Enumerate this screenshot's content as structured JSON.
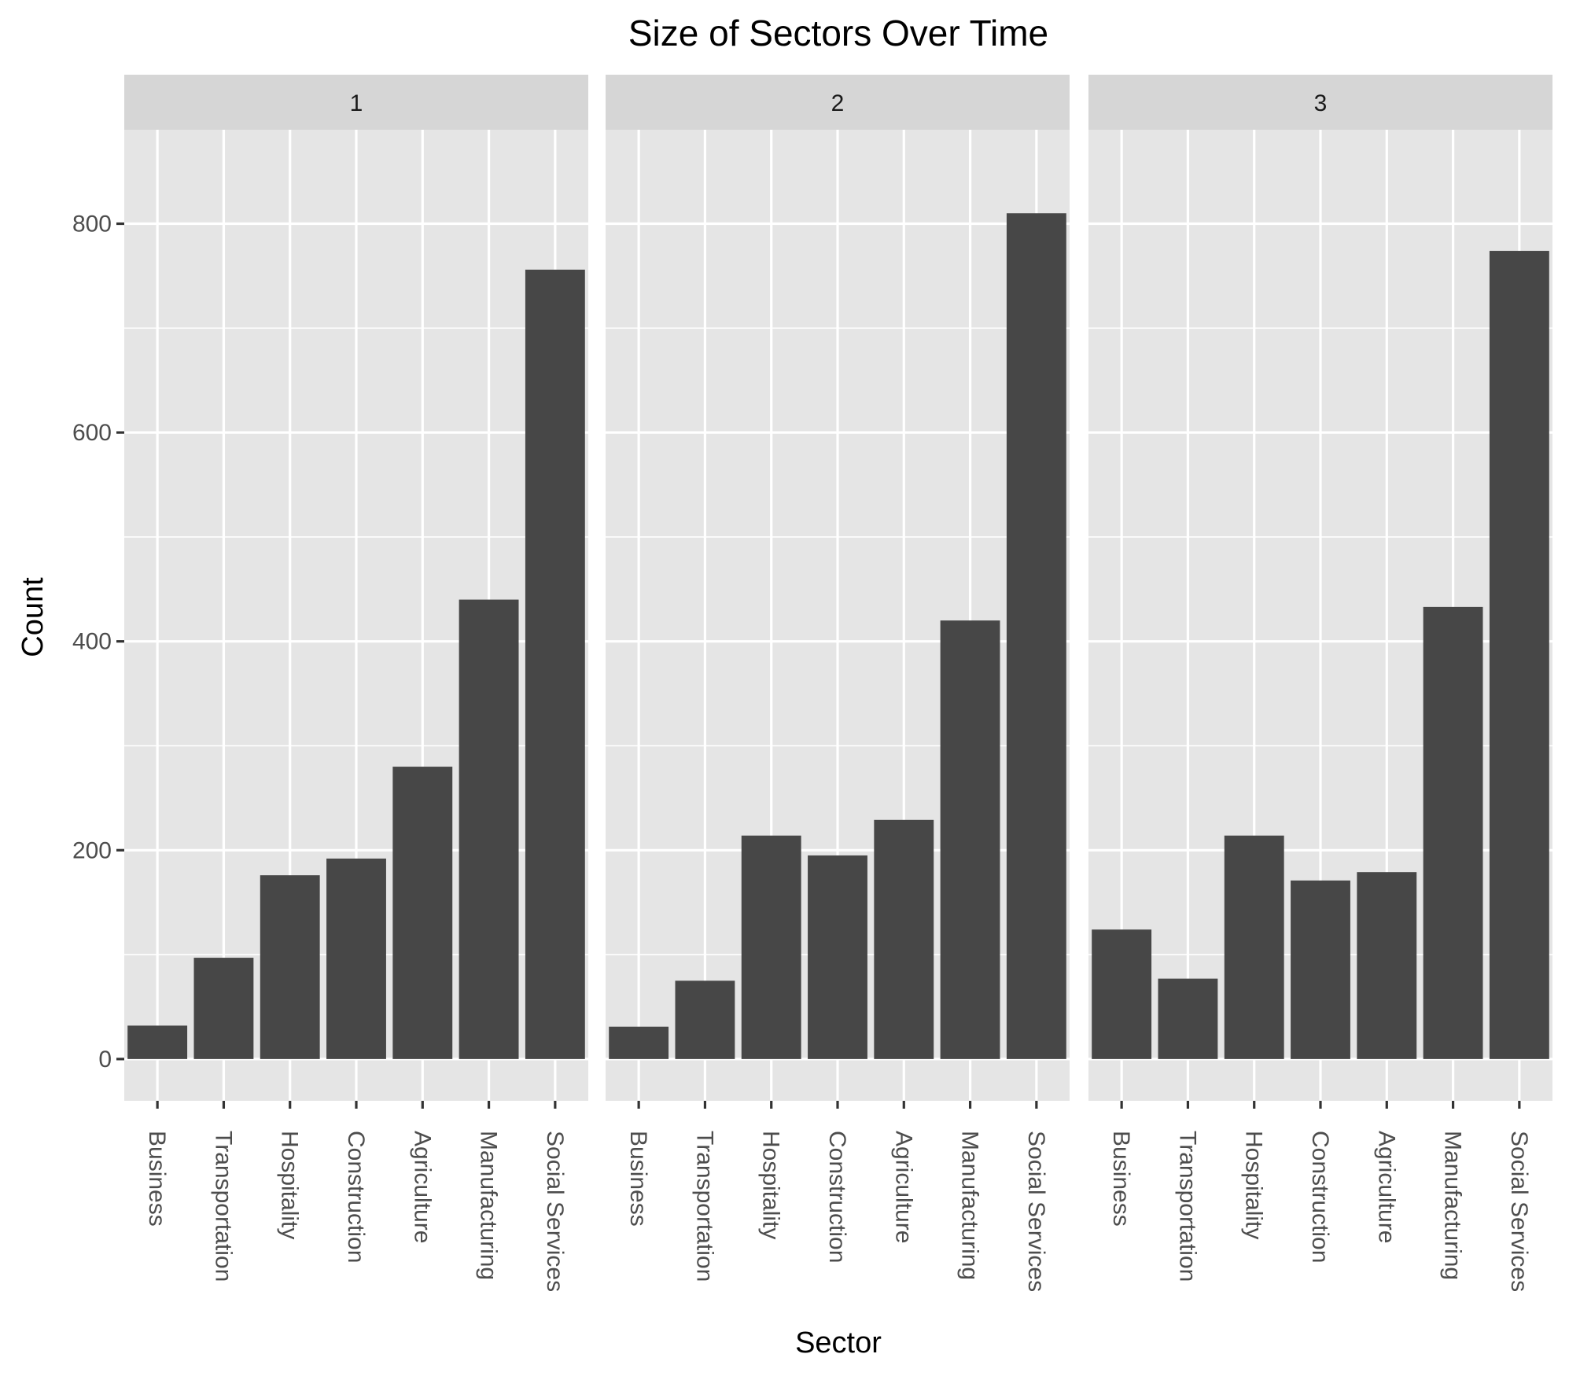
{
  "chart_data": {
    "type": "bar",
    "title": "Size of Sectors Over Time",
    "xlabel": "Sector",
    "ylabel": "Count",
    "ylim": [
      -40,
      890
    ],
    "y_ticks": [
      0,
      200,
      400,
      600,
      800
    ],
    "categories": [
      "Business",
      "Transportation",
      "Hospitality",
      "Construction",
      "Agriculture",
      "Manufacturing",
      "Social Services"
    ],
    "facets": [
      {
        "label": "1",
        "values": [
          32,
          97,
          176,
          192,
          280,
          440,
          756
        ]
      },
      {
        "label": "2",
        "values": [
          31,
          75,
          214,
          195,
          229,
          420,
          810
        ]
      },
      {
        "label": "3",
        "values": [
          124,
          77,
          214,
          171,
          179,
          433,
          774
        ]
      }
    ],
    "grid": true,
    "colors": {
      "bar": "#474747",
      "panel": "#e5e5e5",
      "strip": "#d6d6d6",
      "grid": "#ffffff"
    }
  }
}
